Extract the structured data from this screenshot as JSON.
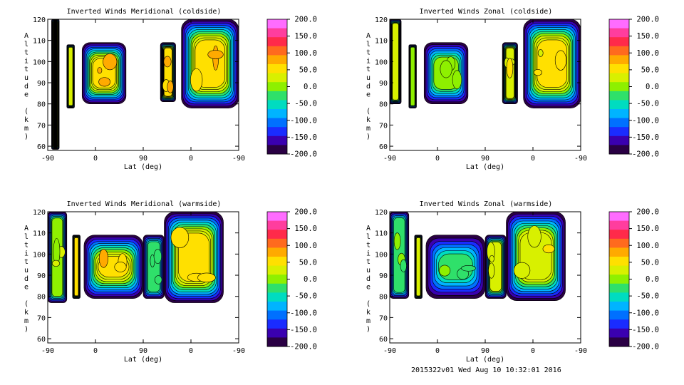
{
  "footer": "2015322v01 Wed Aug 10 10:32:01 2016",
  "colorbar": {
    "ticks": [
      "200.0",
      "150.0",
      "100.0",
      "50.0",
      "0.0",
      "-50.0",
      "-100.0",
      "-150.0",
      "-200.0"
    ],
    "colors": [
      "#ff6cff",
      "#ff3d9e",
      "#ff2a4a",
      "#ff6a1e",
      "#ffaa00",
      "#ffe000",
      "#d8f000",
      "#8ef000",
      "#2fe06a",
      "#00dcc0",
      "#00b4ff",
      "#0070ff",
      "#1a2cff",
      "#3a00b0",
      "#2a0044"
    ]
  },
  "chart_data": [
    {
      "type": "heatmap",
      "title": "Inverted Winds Meridional (coldside)",
      "xlabel": "Lat (deg)",
      "ylabel": "Altitude (km)",
      "xticks": [
        "-90",
        "0",
        "90",
        "0",
        "-90"
      ],
      "yticks": [
        "60",
        "70",
        "80",
        "90",
        "100",
        "110",
        "120"
      ],
      "ylim": [
        58,
        120
      ],
      "colorbar_range": [
        -200,
        200
      ]
    },
    {
      "type": "heatmap",
      "title": "Inverted Winds Zonal (coldside)",
      "xlabel": "Lat (deg)",
      "ylabel": "Altitude (km)",
      "xticks": [
        "-90",
        "0",
        "90",
        "0",
        "-90"
      ],
      "yticks": [
        "60",
        "70",
        "80",
        "90",
        "100",
        "110",
        "120"
      ],
      "ylim": [
        58,
        120
      ],
      "colorbar_range": [
        -200,
        200
      ]
    },
    {
      "type": "heatmap",
      "title": "Inverted Winds Meridional (warmside)",
      "xlabel": "Lat (deg)",
      "ylabel": "Altitude (km)",
      "xticks": [
        "-90",
        "0",
        "90",
        "0",
        "-90"
      ],
      "yticks": [
        "60",
        "70",
        "80",
        "90",
        "100",
        "110",
        "120"
      ],
      "ylim": [
        58,
        120
      ],
      "colorbar_range": [
        -200,
        200
      ]
    },
    {
      "type": "heatmap",
      "title": "Inverted Winds Zonal (warmside)",
      "xlabel": "Lat (deg)",
      "ylabel": "Altitude (km)",
      "xticks": [
        "-90",
        "0",
        "90",
        "0",
        "-90"
      ],
      "yticks": [
        "60",
        "70",
        "80",
        "90",
        "100",
        "110",
        "120"
      ],
      "ylim": [
        58,
        120
      ],
      "colorbar_range": [
        -200,
        200
      ]
    }
  ]
}
